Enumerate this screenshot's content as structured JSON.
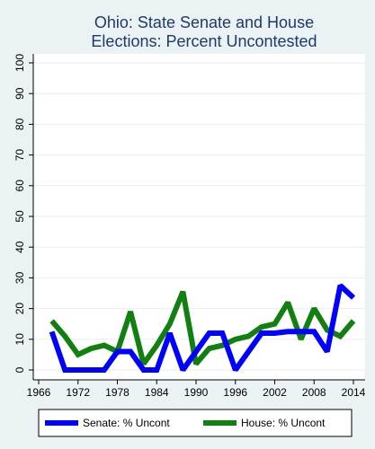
{
  "chart_data": {
    "type": "line",
    "title": "Ohio: State Senate and House Elections: Percent Uncontested",
    "title_lines": [
      "Ohio: State Senate and House",
      "Elections: Percent Uncontested"
    ],
    "xlabel": "",
    "ylabel": "",
    "xlim": [
      1966,
      2014
    ],
    "ylim": [
      0,
      100
    ],
    "x_ticks": [
      "1966",
      "1972",
      "1978",
      "1984",
      "1990",
      "1996",
      "2002",
      "2008",
      "2014"
    ],
    "y_ticks": [
      "0",
      "10",
      "20",
      "30",
      "40",
      "50",
      "60",
      "70",
      "80",
      "90",
      "100"
    ],
    "grid": true,
    "legend_placement": "bottom",
    "x": [
      1968,
      1970,
      1972,
      1974,
      1976,
      1978,
      1980,
      1982,
      1984,
      1986,
      1988,
      1990,
      1992,
      1994,
      1996,
      1998,
      2000,
      2002,
      2004,
      2006,
      2008,
      2010,
      2012,
      2014
    ],
    "series": [
      {
        "name": "Senate: % Uncont",
        "color": "#0000ff",
        "values": [
          12.5,
          0,
          0,
          0,
          0,
          6,
          6,
          0,
          0,
          12,
          0,
          6,
          12,
          12,
          0,
          6,
          12,
          12,
          12.5,
          12.5,
          12.5,
          6,
          27.5,
          23.5
        ]
      },
      {
        "name": "House: % Uncont",
        "color": "#118011",
        "values": [
          16,
          11,
          5,
          7,
          8,
          6,
          19,
          2,
          8,
          15,
          25.5,
          2,
          7,
          8,
          10,
          11,
          14,
          15,
          22,
          10,
          20,
          13,
          11,
          16
        ]
      }
    ]
  }
}
